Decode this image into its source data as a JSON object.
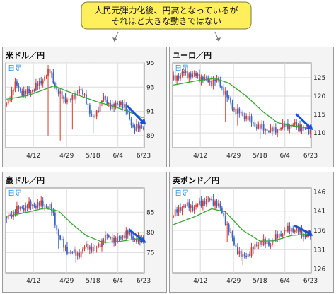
{
  "callout": {
    "line1": "人民元弾力化後、円高となっているが",
    "line2": "それほど大きな動きではない"
  },
  "colors": {
    "callout_fill": "#ffef5c",
    "candle_up": "#d83a2e",
    "candle_down": "#3566c8",
    "ma": "#3aa336",
    "trend_arrow": "#1f4fd8",
    "frame": "#f4f4f4",
    "plot_bg": "#ffffff"
  },
  "chart_data": [
    {
      "type": "candlestick",
      "title": "米ドル／円",
      "period_label": "日足",
      "x_ticks": [
        "4/12",
        "4/29",
        "5/18",
        "6/4",
        "6/23"
      ],
      "ylim": [
        88,
        95
      ],
      "y_ticks": [
        89,
        91,
        93,
        95
      ],
      "anchors": [
        [
          0,
          91.5
        ],
        [
          6,
          93.3
        ],
        [
          10,
          92.4
        ],
        [
          17,
          92.9
        ],
        [
          24,
          94.1
        ],
        [
          26,
          94.3
        ],
        [
          30,
          92.5
        ],
        [
          37,
          91.8
        ],
        [
          42,
          92.8
        ],
        [
          46,
          92.2
        ],
        [
          50,
          90.2
        ],
        [
          56,
          92.1
        ],
        [
          62,
          91.3
        ],
        [
          66,
          91.8
        ],
        [
          70,
          91.0
        ],
        [
          74,
          89.5
        ],
        [
          78,
          89.8
        ]
      ],
      "spikes": [
        {
          "i": 24,
          "low": 89.0
        },
        {
          "i": 31,
          "low": 88.6
        },
        {
          "i": 38,
          "low": 89.5
        },
        {
          "i": 50,
          "low": 89.2
        }
      ],
      "ma": [
        [
          0,
          92.0
        ],
        [
          12,
          92.3
        ],
        [
          20,
          92.7
        ],
        [
          27,
          93.1
        ],
        [
          40,
          92.4
        ],
        [
          52,
          91.8
        ],
        [
          62,
          91.4
        ],
        [
          70,
          91.0
        ],
        [
          78,
          90.5
        ]
      ],
      "arrow": [
        70,
        91.4,
        78,
        89.9
      ]
    },
    {
      "type": "candlestick",
      "title": "ユーロ／円",
      "period_label": "日足",
      "x_ticks": [
        "4/12",
        "4/29",
        "5/18",
        "6/4",
        "6/23"
      ],
      "ylim": [
        106,
        129
      ],
      "y_ticks": [
        110,
        115,
        120,
        125
      ],
      "anchors": [
        [
          0,
          124.5
        ],
        [
          6,
          126.2
        ],
        [
          14,
          125.5
        ],
        [
          22,
          123.8
        ],
        [
          26,
          124.4
        ],
        [
          30,
          121.0
        ],
        [
          36,
          116.0
        ],
        [
          42,
          114.5
        ],
        [
          48,
          112.0
        ],
        [
          52,
          111.2
        ],
        [
          58,
          110.5
        ],
        [
          64,
          111.8
        ],
        [
          68,
          112.2
        ],
        [
          73,
          111.8
        ],
        [
          78,
          110.6
        ]
      ],
      "spikes": [
        {
          "i": 30,
          "low": 113.0
        },
        {
          "i": 37,
          "low": 112.0
        },
        {
          "i": 50,
          "low": 108.5
        }
      ],
      "ma": [
        [
          0,
          123.0
        ],
        [
          14,
          124.2
        ],
        [
          24,
          124.8
        ],
        [
          32,
          123.5
        ],
        [
          42,
          120.0
        ],
        [
          52,
          115.6
        ],
        [
          60,
          112.8
        ],
        [
          68,
          112.0
        ],
        [
          78,
          111.4
        ]
      ],
      "arrow": [
        71,
        115.0,
        78,
        110.8
      ]
    },
    {
      "type": "candlestick",
      "title": "豪ドル／円",
      "period_label": "日足",
      "x_ticks": [
        "4/12",
        "4/29",
        "5/18",
        "6/4",
        "6/23"
      ],
      "ylim": [
        70,
        91
      ],
      "y_ticks": [
        75,
        80,
        85
      ],
      "anchors": [
        [
          0,
          83.2
        ],
        [
          6,
          85.5
        ],
        [
          12,
          86.5
        ],
        [
          20,
          87.0
        ],
        [
          26,
          86.2
        ],
        [
          30,
          80.0
        ],
        [
          34,
          76.0
        ],
        [
          38,
          75.0
        ],
        [
          42,
          74.5
        ],
        [
          46,
          76.5
        ],
        [
          52,
          76.0
        ],
        [
          58,
          79.0
        ],
        [
          64,
          78.0
        ],
        [
          70,
          80.0
        ],
        [
          74,
          78.5
        ],
        [
          78,
          78.0
        ]
      ],
      "spikes": [
        {
          "i": 30,
          "low": 76.0
        },
        {
          "i": 40,
          "low": 72.5
        },
        {
          "i": 52,
          "low": 75.0
        }
      ],
      "ma": [
        [
          0,
          84.0
        ],
        [
          12,
          85.0
        ],
        [
          22,
          86.0
        ],
        [
          30,
          85.3
        ],
        [
          38,
          82.0
        ],
        [
          46,
          79.2
        ],
        [
          56,
          77.5
        ],
        [
          66,
          77.8
        ],
        [
          78,
          78.6
        ]
      ],
      "arrow": [
        71,
        80.6,
        78,
        77.4
      ]
    },
    {
      "type": "candlestick",
      "title": "英ポンド／円",
      "period_label": "日足",
      "x_ticks": [
        "4/12",
        "4/29",
        "5/18",
        "6/4",
        "6/23"
      ],
      "ylim": [
        125,
        147
      ],
      "y_ticks": [
        126,
        131,
        136,
        141,
        146
      ],
      "anchors": [
        [
          0,
          139.8
        ],
        [
          6,
          142.5
        ],
        [
          12,
          142.0
        ],
        [
          20,
          144.0
        ],
        [
          26,
          143.0
        ],
        [
          30,
          139.0
        ],
        [
          36,
          132.0
        ],
        [
          40,
          129.0
        ],
        [
          44,
          130.0
        ],
        [
          50,
          133.0
        ],
        [
          56,
          132.5
        ],
        [
          62,
          135.0
        ],
        [
          68,
          136.5
        ],
        [
          72,
          135.8
        ],
        [
          78,
          134.5
        ]
      ],
      "spikes": [
        {
          "i": 31,
          "low": 133.0
        },
        {
          "i": 40,
          "low": 127.0
        }
      ],
      "ma": [
        [
          0,
          137.5
        ],
        [
          12,
          139.5
        ],
        [
          22,
          141.6
        ],
        [
          30,
          140.8
        ],
        [
          40,
          136.0
        ],
        [
          50,
          133.2
        ],
        [
          58,
          133.3
        ],
        [
          68,
          134.7
        ],
        [
          78,
          135.0
        ]
      ],
      "arrow": [
        70,
        137.2,
        78,
        134.6
      ]
    }
  ]
}
